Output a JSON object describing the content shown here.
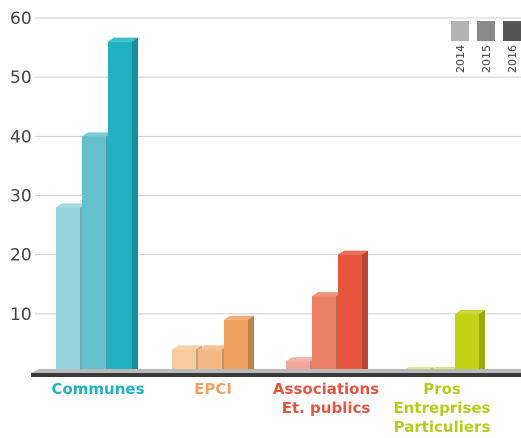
{
  "chart_data": {
    "type": "bar",
    "title": "",
    "xlabel": "",
    "ylabel": "",
    "ylim": [
      0,
      60
    ],
    "yticks": [
      10,
      20,
      30,
      40,
      50,
      60
    ],
    "grid": true,
    "legend_position": "top-right",
    "categories": [
      {
        "lines": [
          "Communes"
        ],
        "color": "#1fb3c4",
        "values": [
          28,
          40,
          56
        ],
        "bar_colors": [
          "#95d4dc",
          "#63c1cd",
          "#1fb0c2"
        ]
      },
      {
        "lines": [
          "EPCI"
        ],
        "color": "#f0a263",
        "values": [
          4,
          4,
          9
        ],
        "bar_colors": [
          "#f6cc9e",
          "#f3b886",
          "#eea060"
        ]
      },
      {
        "lines": [
          "Associations",
          "Et. publics"
        ],
        "color": "#e8553f",
        "values": [
          2,
          13,
          20
        ],
        "bar_colors": [
          "#f1a79b",
          "#ec8065",
          "#e8553f"
        ]
      },
      {
        "lines": [
          "Pros",
          "Entreprises",
          "Particuliers"
        ],
        "color": "#b8cc1c",
        "values": [
          0,
          0,
          10
        ],
        "bar_colors": [
          "#dfe77a",
          "#d3df5a",
          "#c2d214"
        ]
      }
    ],
    "series": [
      {
        "name": "2014",
        "color": "#b3b3b3"
      },
      {
        "name": "2015",
        "color": "#8a8a8a"
      },
      {
        "name": "2016",
        "color": "#555555"
      }
    ]
  }
}
